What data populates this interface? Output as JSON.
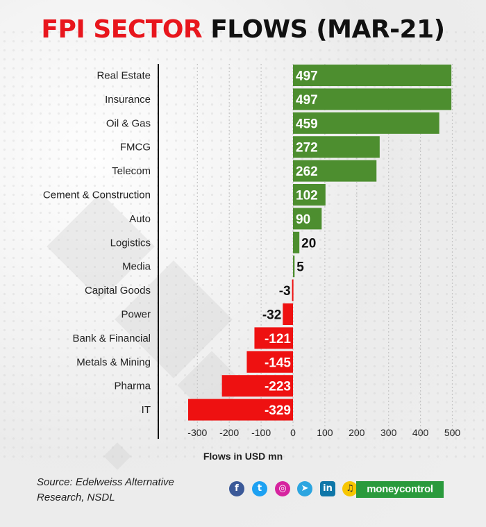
{
  "title": {
    "part1": "FPI SECTOR",
    "part2": "FLOWS (MAR-21)"
  },
  "colors": {
    "positive": "#4d8e2f",
    "negative": "#ee1111",
    "title_accent": "#e8161d",
    "brand": "#2a9a3c"
  },
  "chart_data": {
    "type": "bar",
    "orientation": "horizontal",
    "title": "FPI SECTOR FLOWS (MAR-21)",
    "xlabel": "Flows in USD mn",
    "ylabel": "",
    "xlim": [
      -330,
      510
    ],
    "x_ticks": [
      -300,
      -200,
      -100,
      0,
      100,
      200,
      300,
      400,
      500
    ],
    "x_tick_labels": [
      "-300",
      "-200",
      "-100",
      "0",
      "100",
      "200",
      "300",
      "400",
      "500"
    ],
    "categories": [
      "Real Estate",
      "Insurance",
      "Oil & Gas",
      "FMCG",
      "Telecom",
      "Cement & Construction",
      "Auto",
      "Logistics",
      "Media",
      "Capital Goods",
      "Power",
      "Bank & Financial",
      "Metals & Mining",
      "Pharma",
      "IT"
    ],
    "values": [
      497,
      497,
      459,
      272,
      262,
      102,
      90,
      20,
      5,
      -3,
      -32,
      -121,
      -145,
      -223,
      -329
    ],
    "value_labels": [
      "497",
      "497",
      "459",
      "272",
      "262",
      "102",
      "90",
      "20",
      "5",
      "-3",
      "-32",
      "-121",
      "-145",
      "-223",
      "-329"
    ],
    "grid": "vertical dotted",
    "legend": "none"
  },
  "footer": {
    "source": "Source:  Edelweiss Alternative Research, NSDL",
    "social_icons": [
      "facebook-icon",
      "twitter-icon",
      "instagram-icon",
      "telegram-icon",
      "linkedin-icon",
      "koo-icon"
    ],
    "brand": {
      "part1": "money",
      "part2": "control"
    }
  }
}
